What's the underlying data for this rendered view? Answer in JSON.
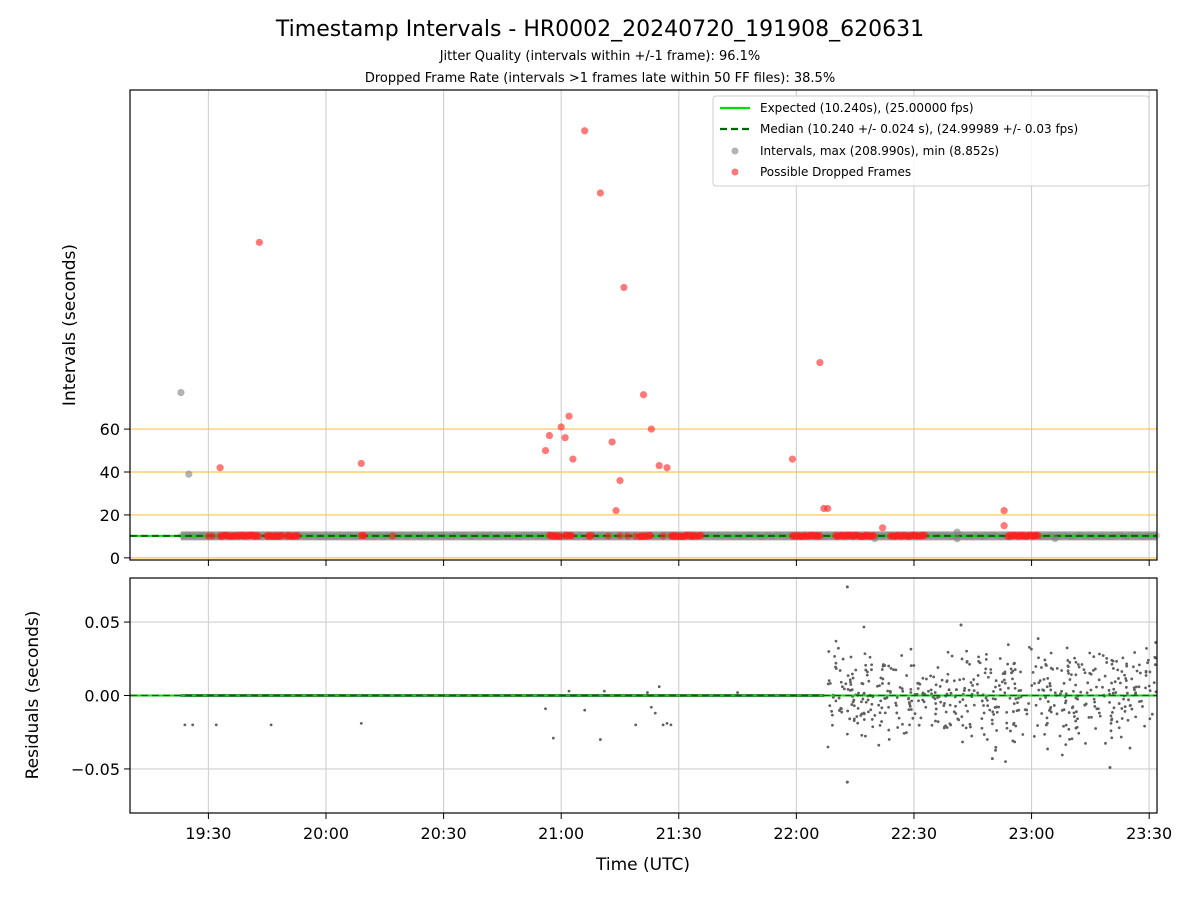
{
  "chart_data": [
    {
      "type": "scatter",
      "title": "Timestamp Intervals - HR0002_20240720_191908_620631",
      "subtitle_1": "Jitter Quality (intervals within +/-1 frame): 96.1%",
      "subtitle_2": "Dropped Frame Rate (intervals >1 frames late within 50 FF files): 38.5%",
      "ylabel": "Intervals (seconds)",
      "yticks": [
        0,
        20,
        40,
        60
      ],
      "ylim": [
        -1,
        218
      ],
      "xlim": [
        "19:10",
        "23:32"
      ],
      "grid": true,
      "legend_position": "top-right",
      "reference_lines": [
        0,
        20,
        40,
        60
      ],
      "reference_line_color": "#ffc34d",
      "expected_interval": 10.24,
      "median_interval": 10.24,
      "legend": [
        {
          "label": "Expected (10.240s), (25.00000 fps)",
          "color": "#00e000",
          "style": "solid"
        },
        {
          "label": "Median (10.240 +/- 0.024 s), (24.99989 +/- 0.03 fps)",
          "color": "#006400",
          "style": "dashed"
        },
        {
          "label": "Intervals, max (208.990s), min (8.852s)",
          "color": "#808080",
          "style": "marker"
        },
        {
          "label": "Possible Dropped Frames",
          "color": "#ff2020",
          "style": "marker"
        }
      ],
      "normal_interval_band": {
        "x_start": "19:23",
        "x_end": "23:32",
        "y": 10.24
      },
      "gray_outliers": [
        {
          "x": "19:23",
          "y": 77
        },
        {
          "x": "19:25",
          "y": 39
        },
        {
          "x": "22:20",
          "y": 9
        },
        {
          "x": "22:41",
          "y": 12
        },
        {
          "x": "22:41",
          "y": 8.9
        },
        {
          "x": "23:06",
          "y": 9
        }
      ],
      "dropped_frame_clusters": [
        {
          "x_start": "19:33",
          "x_end": "19:43"
        },
        {
          "x_start": "19:45",
          "x_end": "19:49"
        },
        {
          "x_start": "19:50",
          "x_end": "19:53"
        },
        {
          "x_start": "20:09",
          "x_end": "20:10"
        },
        {
          "x_start": "20:57",
          "x_end": "21:00"
        },
        {
          "x_start": "21:01",
          "x_end": "21:03"
        },
        {
          "x_start": "21:07",
          "x_end": "21:08"
        },
        {
          "x_start": "21:20",
          "x_end": "21:23"
        },
        {
          "x_start": "21:28",
          "x_end": "21:36"
        },
        {
          "x_start": "21:59",
          "x_end": "22:06"
        },
        {
          "x_start": "22:10",
          "x_end": "22:20"
        },
        {
          "x_start": "22:24",
          "x_end": "22:33"
        },
        {
          "x_start": "22:54",
          "x_end": "23:02"
        }
      ],
      "dropped_frame_points": [
        {
          "x": "19:30",
          "y": 10.2
        },
        {
          "x": "19:31",
          "y": 10.2
        },
        {
          "x": "19:45",
          "y": 10.2
        },
        {
          "x": "20:17",
          "y": 10.2
        },
        {
          "x": "21:12",
          "y": 10.2
        },
        {
          "x": "21:17",
          "y": 10.2
        },
        {
          "x": "21:26",
          "y": 10.2
        },
        {
          "x": "21:19",
          "y": 10.2
        },
        {
          "x": "19:33",
          "y": 42
        },
        {
          "x": "19:43",
          "y": 147
        },
        {
          "x": "20:09",
          "y": 44
        },
        {
          "x": "20:56",
          "y": 50
        },
        {
          "x": "20:57",
          "y": 57
        },
        {
          "x": "21:00",
          "y": 61
        },
        {
          "x": "21:01",
          "y": 56
        },
        {
          "x": "21:02",
          "y": 66
        },
        {
          "x": "21:03",
          "y": 46
        },
        {
          "x": "21:06",
          "y": 199
        },
        {
          "x": "21:10",
          "y": 170
        },
        {
          "x": "21:13",
          "y": 54
        },
        {
          "x": "21:14",
          "y": 22
        },
        {
          "x": "21:15",
          "y": 36
        },
        {
          "x": "21:15",
          "y": 10.3
        },
        {
          "x": "21:16",
          "y": 126
        },
        {
          "x": "21:21",
          "y": 76
        },
        {
          "x": "21:23",
          "y": 60
        },
        {
          "x": "21:25",
          "y": 43
        },
        {
          "x": "21:27",
          "y": 42
        },
        {
          "x": "21:59",
          "y": 46
        },
        {
          "x": "22:06",
          "y": 91
        },
        {
          "x": "22:07",
          "y": 23
        },
        {
          "x": "22:08",
          "y": 23
        },
        {
          "x": "22:22",
          "y": 14
        },
        {
          "x": "22:53",
          "y": 22
        },
        {
          "x": "22:53",
          "y": 15
        }
      ]
    },
    {
      "type": "scatter",
      "ylabel": "Residuals (seconds)",
      "xlabel": "Time (UTC)",
      "yticks": [
        -0.05,
        0.0,
        0.05
      ],
      "ytick_labels": [
        "−0.05",
        "0.00",
        "0.05"
      ],
      "ylim": [
        -0.08,
        0.08
      ],
      "xlim": [
        "19:10",
        "23:32"
      ],
      "xticks": [
        "19:30",
        "20:00",
        "20:30",
        "21:00",
        "21:30",
        "22:00",
        "22:30",
        "23:00",
        "23:30"
      ],
      "grid": true,
      "baseline": 0.0,
      "quiet_segment": {
        "x_start": "19:23",
        "x_end": "22:07",
        "y": 0.0
      },
      "quiet_outliers": [
        {
          "x": "19:24",
          "y": -0.02
        },
        {
          "x": "19:26",
          "y": -0.02
        },
        {
          "x": "19:32",
          "y": -0.02
        },
        {
          "x": "19:46",
          "y": -0.02
        },
        {
          "x": "20:09",
          "y": -0.019
        },
        {
          "x": "20:56",
          "y": -0.009
        },
        {
          "x": "20:58",
          "y": -0.029
        },
        {
          "x": "21:02",
          "y": 0.003
        },
        {
          "x": "21:06",
          "y": -0.01
        },
        {
          "x": "21:10",
          "y": -0.03
        },
        {
          "x": "21:11",
          "y": 0.003
        },
        {
          "x": "21:19",
          "y": -0.02
        },
        {
          "x": "21:22",
          "y": 0.002
        },
        {
          "x": "21:23",
          "y": -0.008
        },
        {
          "x": "21:24",
          "y": -0.012
        },
        {
          "x": "21:25",
          "y": 0.006
        },
        {
          "x": "21:26",
          "y": -0.02
        },
        {
          "x": "21:27",
          "y": -0.019
        },
        {
          "x": "21:28",
          "y": -0.02
        },
        {
          "x": "21:45",
          "y": 0.002
        }
      ],
      "noisy_segment": {
        "x_start": "22:08",
        "x_end": "23:32",
        "y_range": [
          -0.045,
          0.048
        ],
        "count": 560
      },
      "noisy_extremes": [
        {
          "x": "22:13",
          "y": 0.074
        },
        {
          "x": "22:13",
          "y": -0.059
        },
        {
          "x": "22:42",
          "y": 0.048
        },
        {
          "x": "22:50",
          "y": -0.043
        },
        {
          "x": "23:20",
          "y": -0.049
        }
      ]
    }
  ]
}
